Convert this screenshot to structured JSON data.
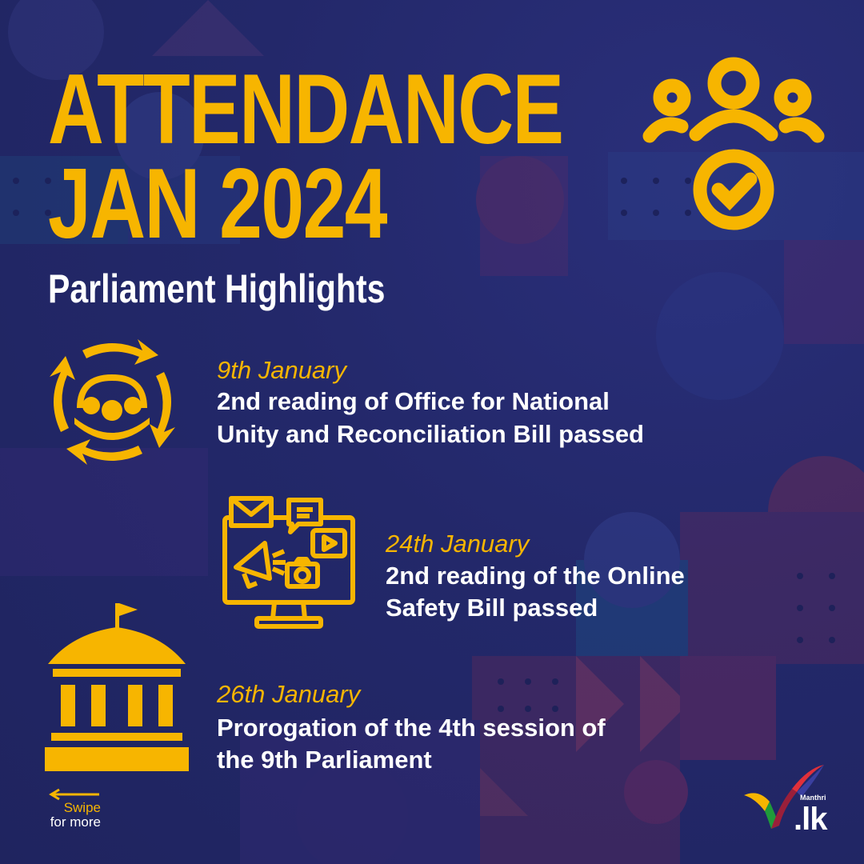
{
  "header": {
    "title_line1": "ATTENDANCE",
    "title_line2": "JAN 2024",
    "subtitle": "Parliament Highlights"
  },
  "highlights": [
    {
      "date": "9th January",
      "line1": "2nd reading of Office for National",
      "line2": "Unity and Reconciliation Bill passed",
      "icon": "unity-cycle-icon"
    },
    {
      "date": "24th January",
      "line1": "2nd reading of the Online",
      "line2": "Safety Bill passed",
      "icon": "online-media-monitor-icon"
    },
    {
      "date": "26th January",
      "line1": "Prorogation of the 4th session of",
      "line2": "the 9th Parliament",
      "icon": "parliament-building-icon"
    }
  ],
  "header_icon": "attendance-people-check-icon",
  "swipe": {
    "line1": "Swipe",
    "line2": "for more"
  },
  "logo": {
    "name": "Manthri",
    "domain": ".lk"
  },
  "colors": {
    "accent": "#f7b500",
    "background": "#252a6b",
    "text": "#ffffff"
  }
}
